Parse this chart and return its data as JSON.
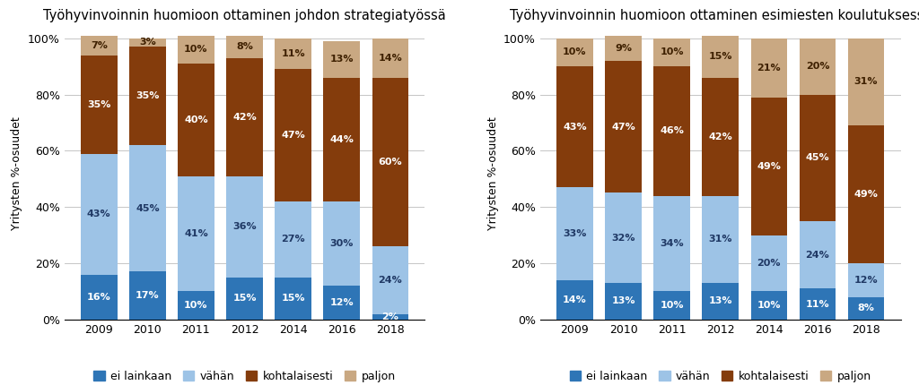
{
  "chart1": {
    "title": "Työhyvinvoinnin huomioon ottaminen johdon strategiatyössä",
    "years": [
      "2009",
      "2010",
      "2011",
      "2012",
      "2014",
      "2016",
      "2018"
    ],
    "ei_lainkaan": [
      16,
      17,
      10,
      15,
      15,
      12,
      2
    ],
    "vahan": [
      43,
      45,
      41,
      36,
      27,
      30,
      24
    ],
    "kohtalaisesti": [
      35,
      35,
      40,
      42,
      47,
      44,
      60
    ],
    "paljon": [
      7,
      3,
      10,
      8,
      11,
      13,
      14
    ]
  },
  "chart2": {
    "title": "Työhyvinvoinnin huomioon ottaminen esimiesten koulutuksessa",
    "years": [
      "2009",
      "2010",
      "2011",
      "2012",
      "2014",
      "2016",
      "2018"
    ],
    "ei_lainkaan": [
      14,
      13,
      10,
      13,
      10,
      11,
      8
    ],
    "vahan": [
      33,
      32,
      34,
      31,
      20,
      24,
      12
    ],
    "kohtalaisesti": [
      43,
      47,
      46,
      42,
      49,
      45,
      49
    ],
    "paljon": [
      10,
      9,
      10,
      15,
      21,
      20,
      31
    ]
  },
  "colors": {
    "ei_lainkaan": "#2E75B6",
    "vahan": "#9DC3E6",
    "kohtalaisesti": "#843C0C",
    "paljon": "#C9A882"
  },
  "ylabel": "Yritysten %-osuudet",
  "legend_labels": [
    "ei lainkaan",
    "vähän",
    "kohtalaisesti",
    "paljon"
  ],
  "bar_width": 0.75,
  "fontsize_title": 10.5,
  "fontsize_label": 9,
  "fontsize_tick": 9,
  "fontsize_bar": 8,
  "background_color": "#FFFFFF"
}
